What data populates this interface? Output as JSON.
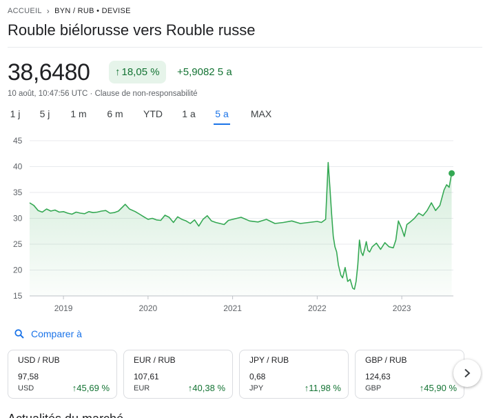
{
  "breadcrumb": {
    "home": "ACCUEIL",
    "current": "BYN / RUB • DEVISE"
  },
  "title": "Rouble biélorusse vers Rouble russe",
  "quote": {
    "price": "38,6480",
    "change_pct": "18,05 %",
    "change_abs": "+5,9082 5 a",
    "timestamp": "10 août, 10:47:56 UTC · Clause de non-responsabilité"
  },
  "ranges": [
    {
      "label": "1 j",
      "active": false
    },
    {
      "label": "5 j",
      "active": false
    },
    {
      "label": "1 m",
      "active": false
    },
    {
      "label": "6 m",
      "active": false
    },
    {
      "label": "YTD",
      "active": false
    },
    {
      "label": "1 a",
      "active": false
    },
    {
      "label": "5 a",
      "active": true
    },
    {
      "label": "MAX",
      "active": false
    }
  ],
  "colors": {
    "positive": "#137333",
    "line": "#34a853",
    "accent": "#1a73e8"
  },
  "chart_data": {
    "type": "area",
    "yticks": [
      "45",
      "40",
      "35",
      "30",
      "25",
      "20",
      "15"
    ],
    "ylim": [
      15,
      45
    ],
    "xticks": [
      {
        "label": "2019",
        "x": 2019.0
      },
      {
        "label": "2020",
        "x": 2020.0
      },
      {
        "label": "2021",
        "x": 2021.0
      },
      {
        "label": "2022",
        "x": 2022.0
      },
      {
        "label": "2023",
        "x": 2023.0
      }
    ],
    "xlim": [
      2018.6,
      2023.61
    ],
    "grid": true,
    "series": [
      {
        "x": [
          2018.6,
          2018.65,
          2018.7,
          2018.75,
          2018.8,
          2018.85,
          2018.9,
          2018.95,
          2019.0,
          2019.05,
          2019.1,
          2019.15,
          2019.2,
          2019.25,
          2019.3,
          2019.35,
          2019.4,
          2019.45,
          2019.5,
          2019.55,
          2019.6,
          2019.65,
          2019.7,
          2019.73,
          2019.78,
          2019.85,
          2019.9,
          2019.95,
          2020.0,
          2020.05,
          2020.1,
          2020.15,
          2020.2,
          2020.25,
          2020.3,
          2020.35,
          2020.4,
          2020.45,
          2020.5,
          2020.55,
          2020.6,
          2020.65,
          2020.7,
          2020.75,
          2020.8,
          2020.85,
          2020.9,
          2020.95,
          2021.0,
          2021.1,
          2021.2,
          2021.3,
          2021.4,
          2021.5,
          2021.6,
          2021.7,
          2021.8,
          2021.9,
          2022.0,
          2022.05,
          2022.1,
          2022.13,
          2022.15,
          2022.17,
          2022.19,
          2022.21,
          2022.23,
          2022.25,
          2022.28,
          2022.3,
          2022.33,
          2022.36,
          2022.39,
          2022.42,
          2022.44,
          2022.46,
          2022.48,
          2022.5,
          2022.52,
          2022.54,
          2022.56,
          2022.58,
          2022.6,
          2022.62,
          2022.65,
          2022.7,
          2022.75,
          2022.8,
          2022.85,
          2022.9,
          2022.93,
          2022.96,
          2023.0,
          2023.03,
          2023.06,
          2023.1,
          2023.15,
          2023.2,
          2023.25,
          2023.3,
          2023.35,
          2023.4,
          2023.45,
          2023.5,
          2023.53,
          2023.56,
          2023.59
        ],
        "y": [
          33.0,
          32.5,
          31.5,
          31.2,
          31.8,
          31.4,
          31.6,
          31.2,
          31.3,
          31.0,
          30.8,
          31.2,
          31.0,
          30.9,
          31.3,
          31.1,
          31.2,
          31.4,
          31.5,
          31.0,
          31.1,
          31.4,
          32.2,
          32.7,
          31.8,
          31.3,
          30.8,
          30.3,
          29.8,
          30.0,
          29.7,
          29.6,
          30.6,
          30.2,
          29.2,
          30.3,
          29.8,
          29.5,
          29.0,
          29.7,
          28.5,
          29.8,
          30.5,
          29.5,
          29.2,
          29.0,
          28.8,
          29.6,
          29.8,
          30.2,
          29.5,
          29.3,
          29.8,
          29.0,
          29.2,
          29.5,
          29.0,
          29.2,
          29.4,
          29.2,
          29.8,
          40.8,
          36.0,
          31.0,
          26.5,
          24.5,
          23.5,
          21.0,
          19.0,
          18.5,
          20.5,
          17.8,
          18.2,
          16.5,
          16.3,
          17.8,
          21.0,
          25.8,
          23.5,
          22.8,
          24.0,
          25.5,
          23.8,
          23.5,
          24.5,
          25.2,
          24.0,
          25.3,
          24.5,
          24.3,
          25.8,
          29.5,
          28.0,
          26.5,
          28.8,
          29.3,
          30.0,
          31.0,
          30.5,
          31.5,
          33.0,
          31.5,
          32.5,
          35.5,
          36.5,
          36.0,
          38.7
        ]
      }
    ]
  },
  "compare": {
    "label": "Comparer à"
  },
  "cards": [
    {
      "title": "USD / RUB",
      "value": "97,58",
      "currency": "USD",
      "change": "45,69 %"
    },
    {
      "title": "EUR / RUB",
      "value": "107,61",
      "currency": "EUR",
      "change": "40,38 %"
    },
    {
      "title": "JPY / RUB",
      "value": "0,68",
      "currency": "JPY",
      "change": "11,98 %"
    },
    {
      "title": "GBP / RUB",
      "value": "124,63",
      "currency": "GBP",
      "change": "45,90 %"
    }
  ],
  "news": {
    "heading": "Actualités du marché"
  }
}
